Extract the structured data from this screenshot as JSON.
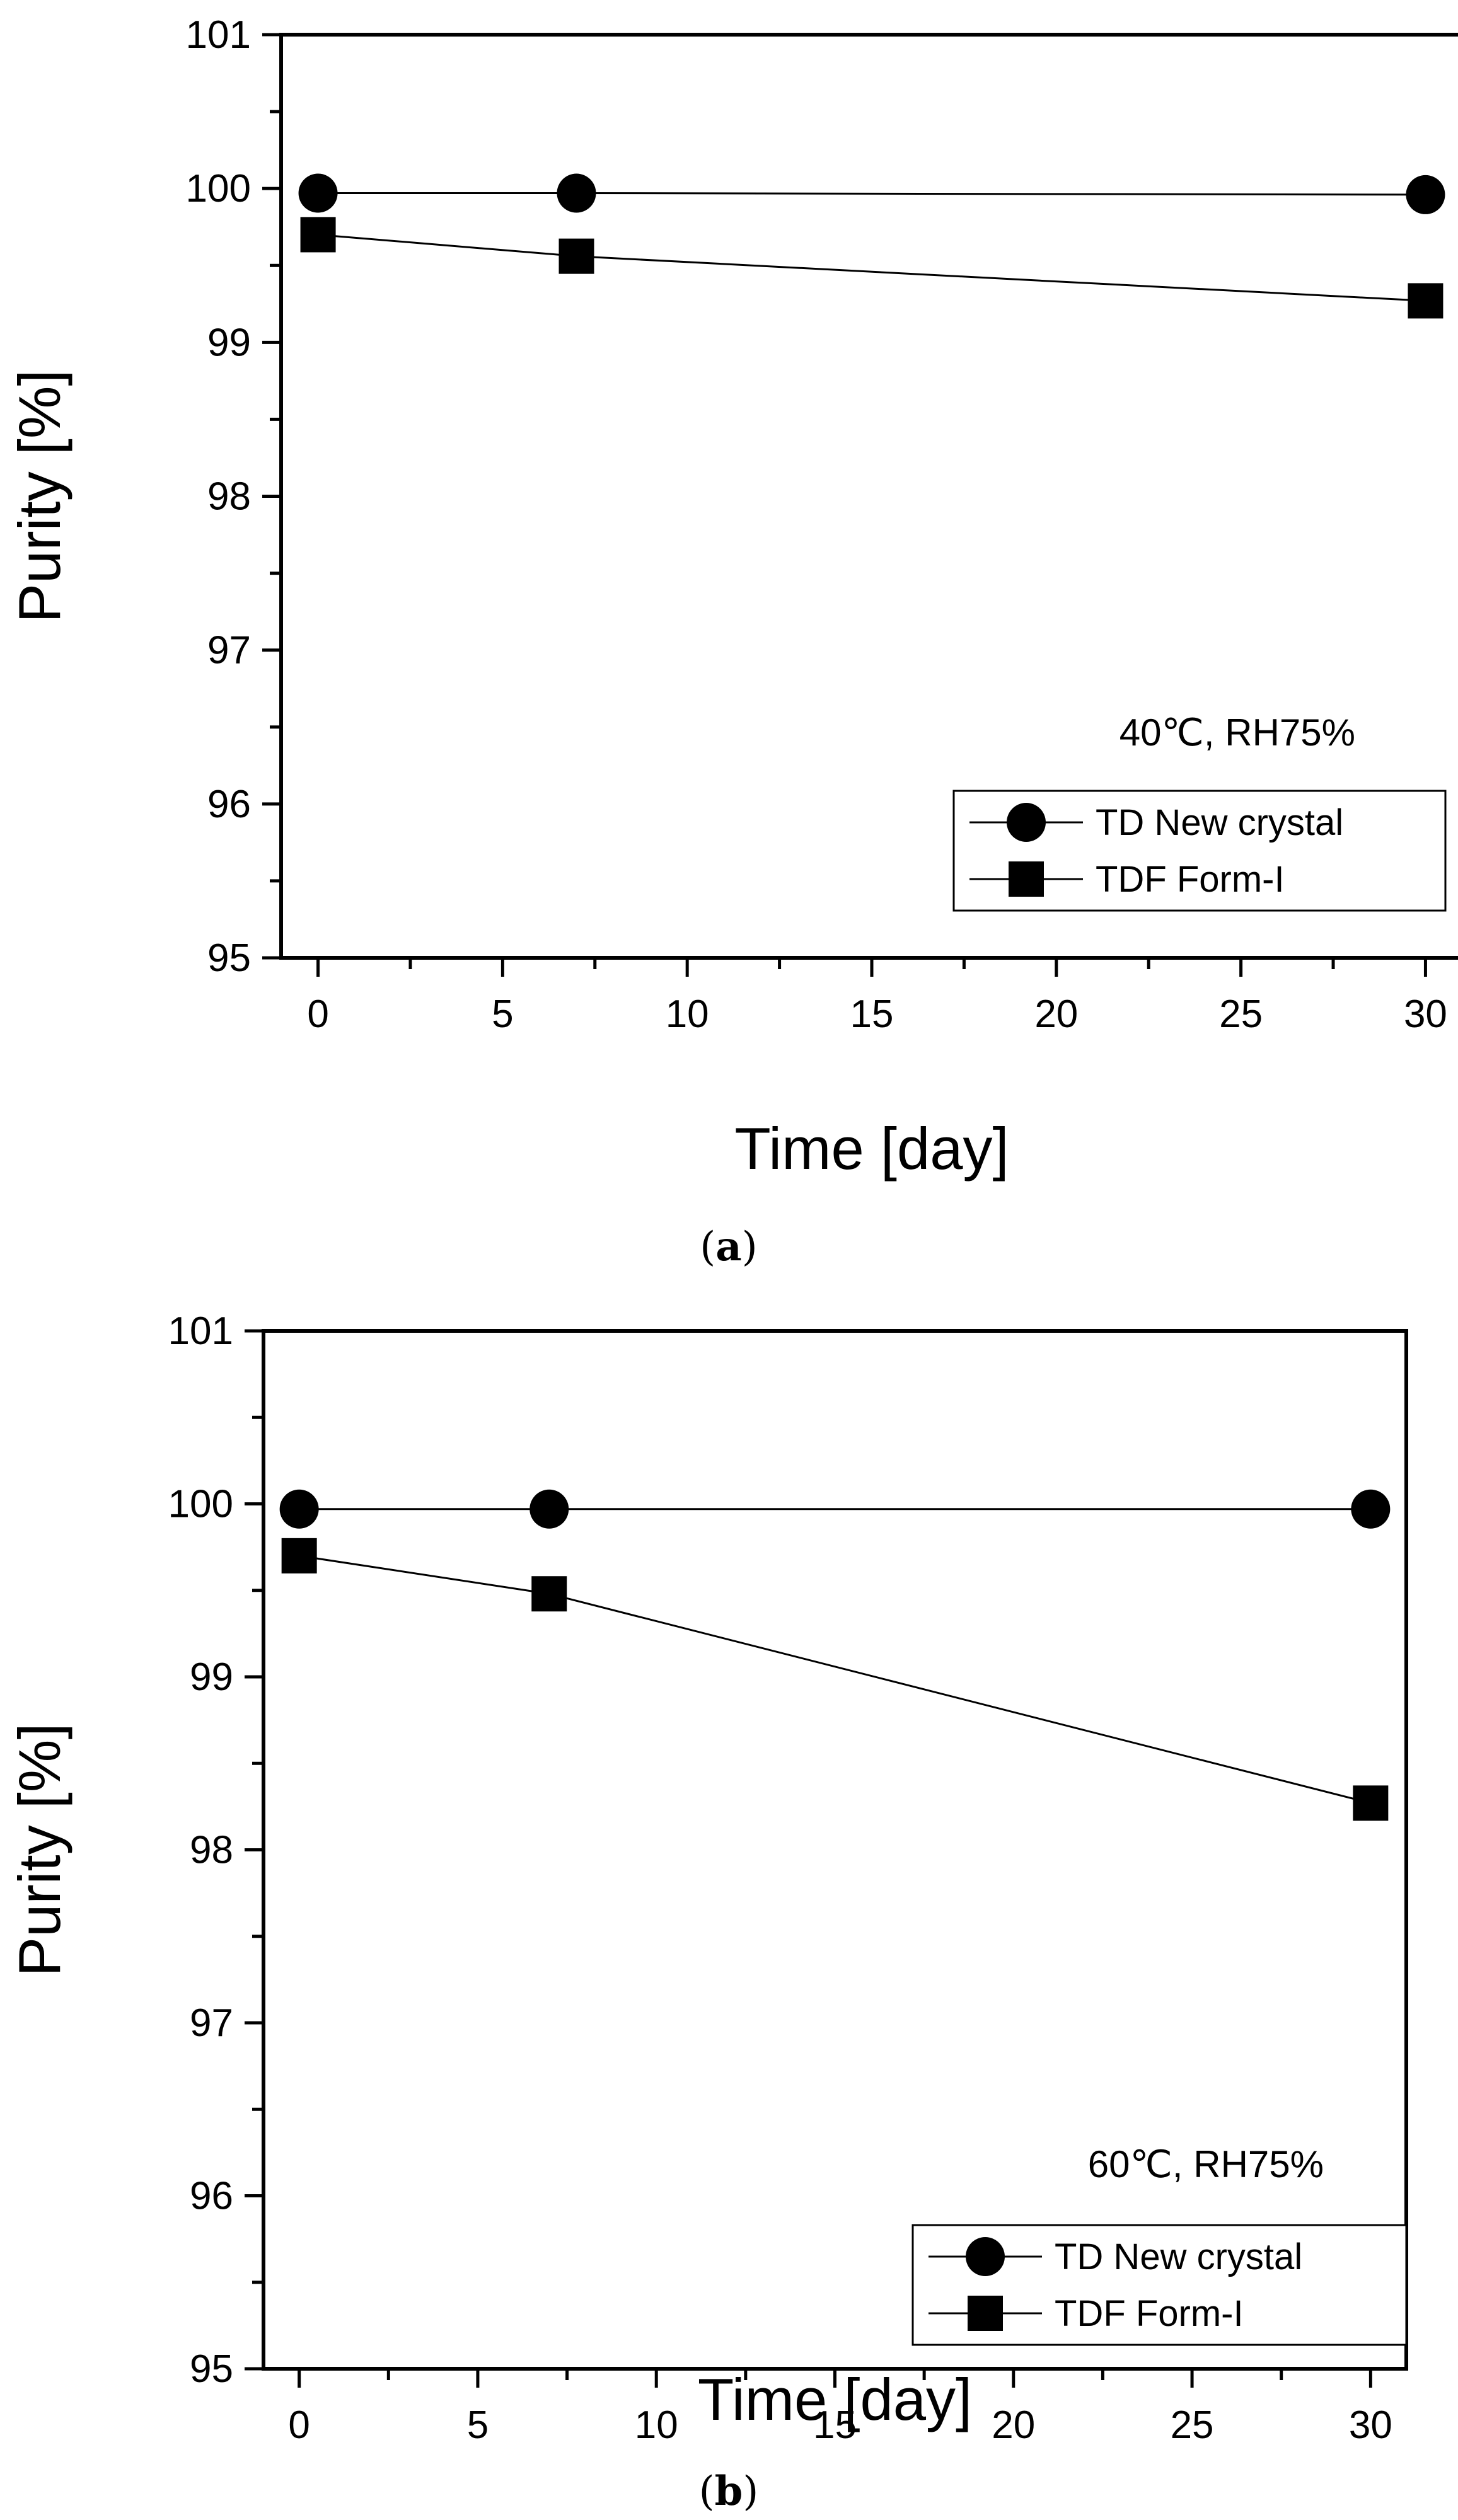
{
  "chart_data": [
    {
      "type": "line",
      "panel_label": "a",
      "condition": "40℃, RH75%",
      "xlabel": "Time [day]",
      "ylabel": "Purity [%]",
      "xlim": [
        -1,
        31
      ],
      "ylim": [
        95,
        101
      ],
      "xticks": [
        "0",
        "5",
        "10",
        "15",
        "20",
        "25",
        "30"
      ],
      "yticks": [
        "95",
        "96",
        "97",
        "98",
        "99",
        "100",
        "101"
      ],
      "legend_position": "bottom-right",
      "series": [
        {
          "name": "TD New crystal",
          "marker": "circle",
          "x": [
            0,
            7,
            30
          ],
          "y": [
            99.97,
            99.97,
            99.96
          ]
        },
        {
          "name": "TDF Form-I",
          "marker": "square",
          "x": [
            0,
            7,
            30
          ],
          "y": [
            99.7,
            99.56,
            99.27
          ]
        }
      ]
    },
    {
      "type": "line",
      "panel_label": "b",
      "condition": "60℃, RH75%",
      "xlabel": "Time [day]",
      "ylabel": "Purity [%]",
      "xlim": [
        -1,
        31
      ],
      "ylim": [
        95,
        101
      ],
      "xticks": [
        "0",
        "5",
        "10",
        "15",
        "20",
        "25",
        "30"
      ],
      "yticks": [
        "95",
        "96",
        "97",
        "98",
        "99",
        "100",
        "101"
      ],
      "legend_position": "bottom-right",
      "series": [
        {
          "name": "TD New crystal",
          "marker": "circle",
          "x": [
            0,
            7,
            30
          ],
          "y": [
            99.97,
            99.97,
            99.97
          ]
        },
        {
          "name": "TDF Form-I",
          "marker": "square",
          "x": [
            0,
            7,
            30
          ],
          "y": [
            99.7,
            99.48,
            98.27
          ]
        }
      ]
    }
  ]
}
